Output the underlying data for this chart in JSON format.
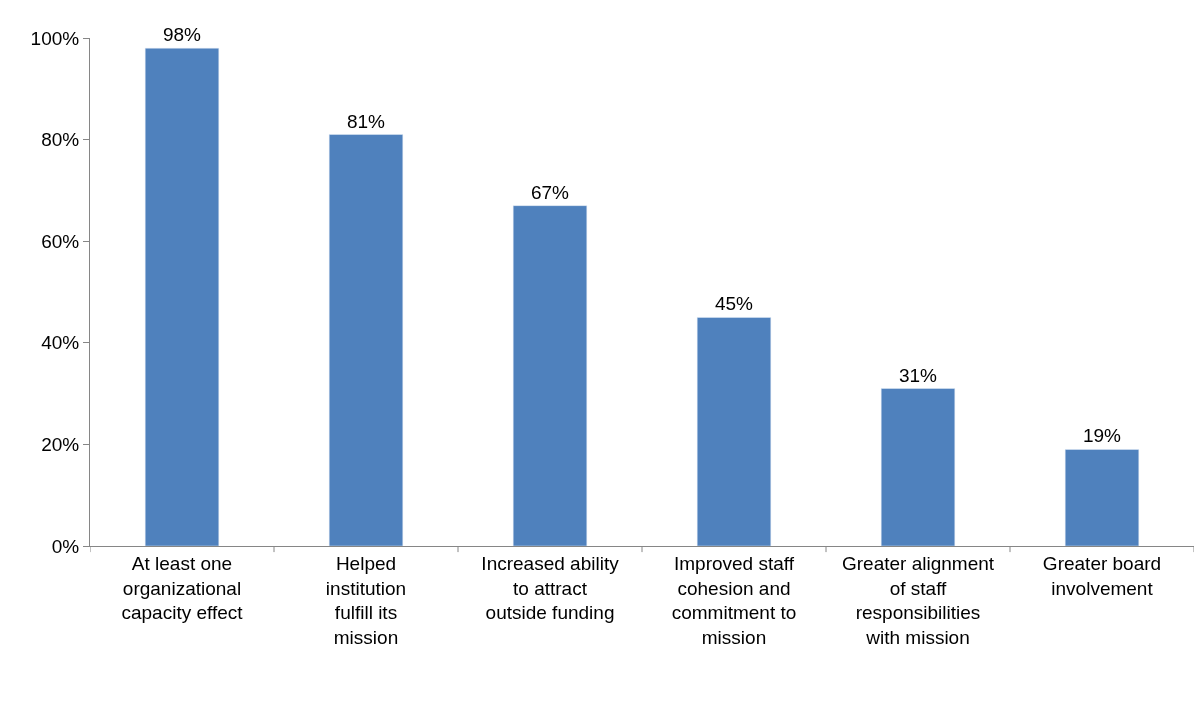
{
  "chart_data": {
    "type": "bar",
    "categories": [
      "At least one organizational capacity effect",
      "Helped institution fulfill its mission",
      "Increased ability to attract outside funding",
      "Improved staff cohesion and commitment to mission",
      "Greater alignment of staff responsibilities with mission",
      "Greater board involvement"
    ],
    "values": [
      98,
      81,
      67,
      45,
      31,
      19
    ],
    "value_labels": [
      "98%",
      "81%",
      "67%",
      "45%",
      "31%",
      "19%"
    ],
    "color": "#4f81bd",
    "ylim": [
      0,
      100
    ],
    "yticks": [
      {
        "value": 0,
        "label": "0%"
      },
      {
        "value": 20,
        "label": "20%"
      },
      {
        "value": 40,
        "label": "40%"
      },
      {
        "value": 60,
        "label": "60%"
      },
      {
        "value": 80,
        "label": "80%"
      },
      {
        "value": 100,
        "label": "100%"
      }
    ],
    "grid": false,
    "legend": false
  }
}
